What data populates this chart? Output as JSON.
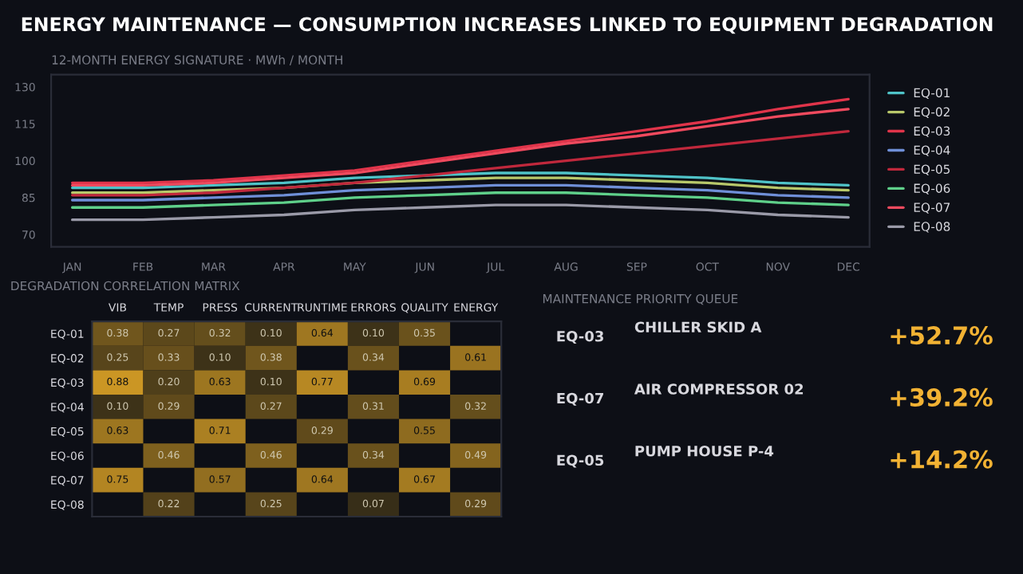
{
  "chart_data": [
    {
      "type": "line",
      "title": "ENERGY MAINTENANCE — CONSUMPTION INCREASES LINKED TO EQUIPMENT DEGRADATION",
      "subtitle": "12-MONTH ENERGY SIGNATURE · MWh / MONTH",
      "categories": [
        "JAN",
        "FEB",
        "MAR",
        "APR",
        "MAY",
        "JUN",
        "JUL",
        "AUG",
        "SEP",
        "OCT",
        "NOV",
        "DEC"
      ],
      "series": [
        {
          "name": "EQ-01",
          "color": "#4fc3c8",
          "values": [
            89,
            89,
            90,
            91,
            93,
            94,
            95,
            95,
            94,
            93,
            91,
            90
          ]
        },
        {
          "name": "EQ-02",
          "color": "#b8c86a",
          "values": [
            87,
            87,
            88,
            89,
            91,
            92,
            93,
            93,
            92,
            91,
            89,
            88
          ]
        },
        {
          "name": "EQ-03",
          "color": "#e0344a",
          "values": [
            91,
            91,
            92,
            94,
            96,
            100,
            104,
            108,
            112,
            116,
            121,
            125
          ]
        },
        {
          "name": "EQ-04",
          "color": "#6f8fd8",
          "values": [
            84,
            84,
            85,
            86,
            88,
            89,
            90,
            90,
            89,
            88,
            86,
            85
          ]
        },
        {
          "name": "EQ-05",
          "color": "#c0283c",
          "values": [
            86,
            86,
            87,
            89,
            91,
            94,
            97,
            100,
            103,
            106,
            109,
            112
          ]
        },
        {
          "name": "EQ-06",
          "color": "#5fd08a",
          "values": [
            81,
            81,
            82,
            83,
            85,
            86,
            87,
            87,
            86,
            85,
            83,
            82
          ]
        },
        {
          "name": "EQ-07",
          "color": "#f04a5e",
          "values": [
            90,
            90,
            91,
            93,
            95,
            99,
            103,
            107,
            110,
            114,
            118,
            121
          ]
        },
        {
          "name": "EQ-08",
          "color": "#9a9aa8",
          "values": [
            76,
            76,
            77,
            78,
            80,
            81,
            82,
            82,
            81,
            80,
            78,
            77
          ]
        }
      ],
      "ylim": [
        65,
        135
      ],
      "yticks": [
        70,
        85,
        100,
        115,
        130
      ],
      "legend": "right",
      "grid": false
    },
    {
      "type": "heatmap",
      "title": "DEGRADATION CORRELATION MATRIX",
      "categories": [
        "VIB",
        "TEMP",
        "PRESS",
        "CURRENT",
        "RUNTIME",
        "ERRORS",
        "QUALITY",
        "ENERGY"
      ],
      "y_categories": [
        "EQ-01",
        "EQ-02",
        "EQ-03",
        "EQ-04",
        "EQ-05",
        "EQ-06",
        "EQ-07",
        "EQ-08"
      ],
      "cells": [
        [
          0.38,
          0.27,
          0.32,
          0.1,
          0.64,
          0.1,
          0.35,
          null
        ],
        [
          0.25,
          0.33,
          0.1,
          0.38,
          null,
          0.34,
          null,
          0.61
        ],
        [
          0.88,
          0.2,
          0.63,
          0.1,
          0.77,
          null,
          0.69,
          null
        ],
        [
          0.1,
          0.29,
          null,
          0.27,
          null,
          0.31,
          null,
          0.32
        ],
        [
          0.63,
          null,
          0.71,
          null,
          0.29,
          null,
          0.55,
          null
        ],
        [
          null,
          0.46,
          null,
          0.46,
          null,
          0.34,
          null,
          0.49
        ],
        [
          0.75,
          null,
          0.57,
          null,
          0.64,
          null,
          0.67,
          null
        ],
        [
          null,
          0.22,
          null,
          0.25,
          null,
          0.07,
          null,
          0.29
        ]
      ],
      "cell_labels": [
        [
          "0.38",
          "0.27",
          "0.32",
          "0.10",
          "0.64",
          "0.10",
          "0.35",
          null
        ],
        [
          "0.25",
          "0.33",
          "0.10",
          "0.38",
          null,
          "0.34",
          null,
          "0.61"
        ],
        [
          "0.88",
          "0.20",
          "0.63",
          "0.10",
          "0.77",
          null,
          "0.69",
          null
        ],
        [
          "0.10",
          "0.29",
          null,
          "0.27",
          null,
          "0.31",
          null,
          "0.32"
        ],
        [
          "0.63",
          null,
          "0.71",
          null,
          "0.29",
          null,
          "0.55",
          null
        ],
        [
          null,
          "0.46",
          null,
          "0.46",
          null,
          "0.34",
          null,
          "0.49"
        ],
        [
          "0.75",
          null,
          "0.57",
          null,
          "0.64",
          null,
          "0.67",
          null
        ],
        [
          null,
          "0.22",
          null,
          "0.25",
          null,
          "0.07",
          null,
          "0.29"
        ]
      ]
    },
    {
      "type": "other",
      "title": "MAINTENANCE PRIORITY QUEUE",
      "annotations": [
        "EQ-03",
        "CHILLER SKID A",
        "+52.7%",
        "EQ-07",
        "AIR COMPRESSOR 02",
        "+39.2%",
        "EQ-05",
        "PUMP HOUSE P-4",
        "+14.2%"
      ]
    }
  ]
}
